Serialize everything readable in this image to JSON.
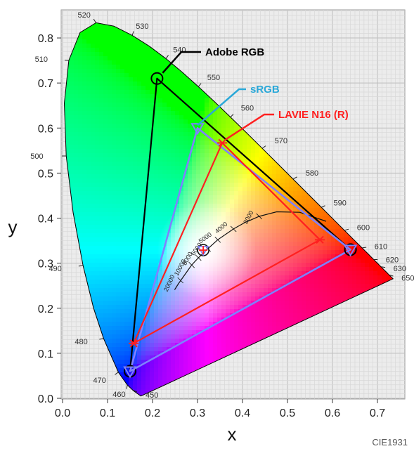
{
  "chart_data": {
    "type": "scatter",
    "title": "",
    "xlabel": "x",
    "ylabel": "y",
    "xlim": [
      0.0,
      0.75
    ],
    "ylim": [
      0.0,
      0.85
    ],
    "x_ticks": [
      "0.0",
      "0.1",
      "0.2",
      "0.3",
      "0.4",
      "0.5",
      "0.6",
      "0.7"
    ],
    "y_ticks": [
      "0.0",
      "0.1",
      "0.2",
      "0.3",
      "0.4",
      "0.5",
      "0.6",
      "0.7",
      "0.8"
    ],
    "grid": true,
    "footer": "CIE1931",
    "spectral_locus": [
      {
        "nm": "450",
        "x": 0.157,
        "y": 0.018
      },
      {
        "nm": "460",
        "x": 0.144,
        "y": 0.03
      },
      {
        "nm": "470",
        "x": 0.124,
        "y": 0.058
      },
      {
        "nm": "480",
        "x": 0.091,
        "y": 0.133
      },
      {
        "nm": "490",
        "x": 0.045,
        "y": 0.295
      },
      {
        "nm": "500",
        "x": 0.008,
        "y": 0.538
      },
      {
        "nm": "510",
        "x": 0.014,
        "y": 0.75
      },
      {
        "nm": "520",
        "x": 0.074,
        "y": 0.834
      },
      {
        "nm": "530",
        "x": 0.155,
        "y": 0.806
      },
      {
        "nm": "540",
        "x": 0.23,
        "y": 0.754
      },
      {
        "nm": "550",
        "x": 0.302,
        "y": 0.692
      },
      {
        "nm": "560",
        "x": 0.373,
        "y": 0.624
      },
      {
        "nm": "570",
        "x": 0.444,
        "y": 0.555
      },
      {
        "nm": "580",
        "x": 0.513,
        "y": 0.487
      },
      {
        "nm": "590",
        "x": 0.575,
        "y": 0.424
      },
      {
        "nm": "600",
        "x": 0.627,
        "y": 0.373
      },
      {
        "nm": "610",
        "x": 0.666,
        "y": 0.334
      },
      {
        "nm": "620",
        "x": 0.691,
        "y": 0.308
      },
      {
        "nm": "630",
        "x": 0.708,
        "y": 0.292
      },
      {
        "nm": "650",
        "x": 0.726,
        "y": 0.274
      }
    ],
    "cct_labels": [
      "3000",
      "4000",
      "5000",
      "6000",
      "8000",
      "10000",
      "20000"
    ],
    "series": [
      {
        "name": "Adobe RGB",
        "color": "#000000",
        "marker": "circle",
        "points": [
          {
            "x": 0.64,
            "y": 0.33
          },
          {
            "x": 0.21,
            "y": 0.71
          },
          {
            "x": 0.15,
            "y": 0.06
          }
        ]
      },
      {
        "name": "sRGB",
        "color": "#2aa8d8",
        "line_color": "#8080ff",
        "marker": "triangle",
        "points": [
          {
            "x": 0.64,
            "y": 0.33
          },
          {
            "x": 0.3,
            "y": 0.6
          },
          {
            "x": 0.15,
            "y": 0.06
          }
        ]
      },
      {
        "name": "LAVIE N16 (R)",
        "color": "#ff2020",
        "marker": "star",
        "points": [
          {
            "x": 0.572,
            "y": 0.352
          },
          {
            "x": 0.355,
            "y": 0.567
          },
          {
            "x": 0.158,
            "y": 0.122
          }
        ]
      }
    ],
    "white_point": {
      "x": 0.3127,
      "y": 0.329
    }
  }
}
